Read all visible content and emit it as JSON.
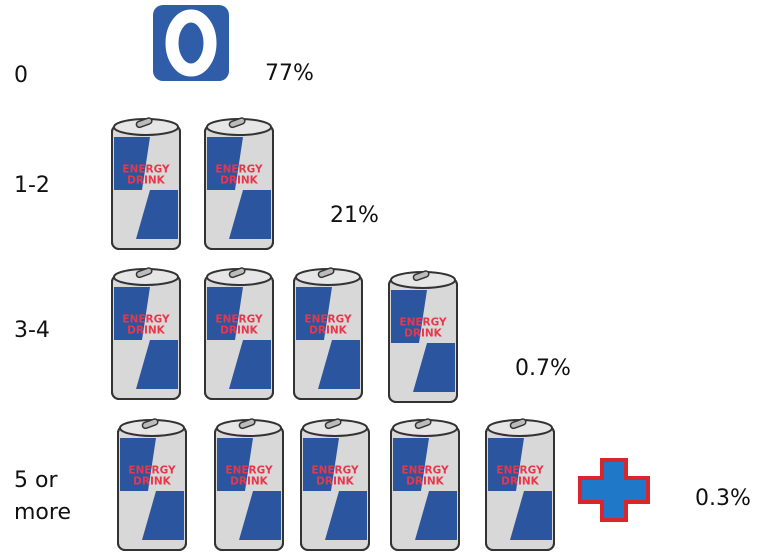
{
  "chart_data": {
    "type": "pictograph",
    "categories": [
      "0",
      "1-2",
      "3-4",
      "5 or more"
    ],
    "values": [
      77,
      21,
      0.7,
      0.3
    ],
    "value_labels": [
      "77%",
      "21%",
      "0.7%",
      "0.3%"
    ],
    "icon_text": [
      "ENERGY",
      "DRINK"
    ]
  }
}
